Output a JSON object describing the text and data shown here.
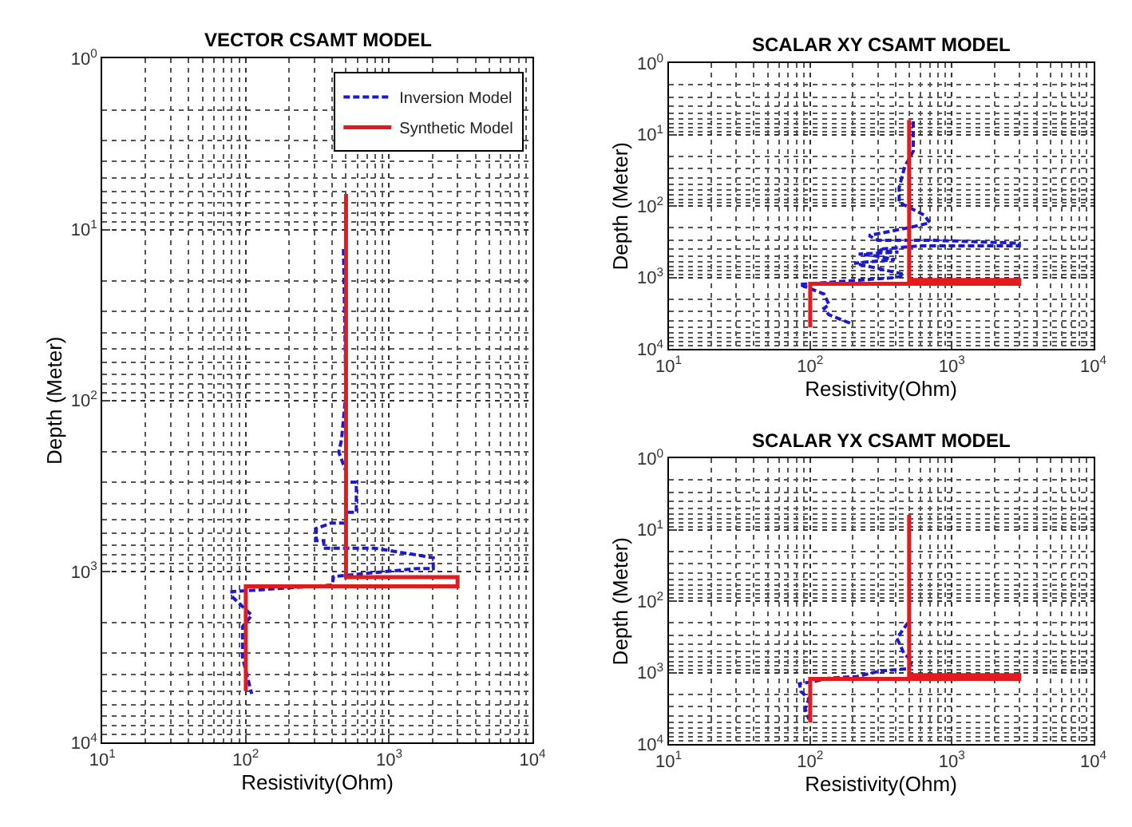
{
  "chart_data": [
    {
      "type": "line",
      "title": "VECTOR CSAMT MODEL",
      "xlabel": "Resistivity(Ohm)",
      "ylabel": "Depth (Meter)",
      "log": "xy",
      "grid": true,
      "legend": "top right",
      "xlim": [
        10,
        10000
      ],
      "xticks": [
        {
          "value": 10,
          "label": "10$^{1}$"
        },
        {
          "value": 100,
          "label": "10$^{2}$"
        },
        {
          "value": 1000,
          "label": "10$^{3}$"
        },
        {
          "value": 10000,
          "label": "10$^{4}$"
        }
      ],
      "ylim": [
        10000,
        1
      ],
      "yticks": [
        {
          "value": 1,
          "label": "10$^{0}$"
        },
        {
          "value": 10,
          "label": "10$^{1}$"
        },
        {
          "value": 100,
          "label": "10$^{2}$"
        },
        {
          "value": 1000,
          "label": "10$^{3}$"
        },
        {
          "value": 10000,
          "label": "10$^{4}$"
        }
      ],
      "series": [
        {
          "name": "Inversion Model",
          "color": "#1a1acc",
          "line_style": "dashed",
          "x": [
            480,
            500,
            465,
            445,
            500,
            500,
            590,
            590,
            500,
            500,
            395,
            310,
            310,
            350,
            350,
            790,
            2030,
            2030,
            1580,
            410,
            400,
            80,
            80,
            110,
            95,
            95,
            110
          ],
          "values": [
            13,
            90,
            170,
            200,
            260,
            300,
            300,
            450,
            450,
            520,
            520,
            560,
            660,
            660,
            730,
            730,
            830,
            960,
            960,
            1070,
            1200,
            1310,
            1400,
            1800,
            2100,
            3200,
            5200
          ]
        },
        {
          "name": "Synthetic Model",
          "color": "#e41a1c",
          "line_style": "solid",
          "x": [
            500,
            500,
            3000,
            3000,
            100,
            100
          ],
          "values": [
            6.2,
            1080,
            1080,
            1220,
            1220,
            5000
          ]
        }
      ]
    },
    {
      "type": "line",
      "title": "SCALAR XY CSAMT MODEL",
      "xlabel": "Resistivity(Ohm)",
      "ylabel": "Depth (Meter)",
      "log": "xy",
      "grid": true,
      "xlim": [
        10,
        10000
      ],
      "xticks": [
        {
          "value": 10,
          "label": "10$^{1}$"
        },
        {
          "value": 100,
          "label": "10$^{2}$"
        },
        {
          "value": 1000,
          "label": "10$^{3}$"
        },
        {
          "value": 10000,
          "label": "10$^{4}$"
        }
      ],
      "ylim": [
        10000,
        1
      ],
      "yticks": [
        {
          "value": 1,
          "label": "10$^{0}$"
        },
        {
          "value": 10,
          "label": "10$^{1}$"
        },
        {
          "value": 100,
          "label": "10$^{2}$"
        },
        {
          "value": 1000,
          "label": "10$^{3}$"
        },
        {
          "value": 10000,
          "label": "10$^{4}$"
        }
      ],
      "series": [
        {
          "color": "#1a1acc",
          "line_style": "dashed",
          "x": [
            535,
            535,
            465,
            425,
            425,
            505,
            640,
            700,
            500,
            260,
            300,
            700,
            3000,
            3000,
            600,
            310,
            300,
            420,
            220,
            285,
            395,
            205,
            460,
            400,
            84,
            125,
            136,
            125,
            135,
            200
          ],
          "values": [
            6.5,
            17,
            28,
            55,
            89,
            105,
            134,
            171,
            200,
            258,
            300,
            300,
            330,
            360,
            360,
            400,
            420,
            440,
            470,
            495,
            560,
            630,
            900,
            1000,
            1250,
            1700,
            2400,
            2700,
            3300,
            4500
          ]
        },
        {
          "color": "#e41a1c",
          "line_style": "solid",
          "x": [
            500,
            500,
            3000,
            3000,
            100,
            100
          ],
          "values": [
            6.2,
            1080,
            1080,
            1220,
            1220,
            5000
          ]
        }
      ]
    },
    {
      "type": "line",
      "title": "SCALAR YX CSAMT MODEL",
      "xlabel": "Resistivity(Ohm)",
      "ylabel": "Depth (Meter)",
      "log": "xy",
      "grid": true,
      "xlim": [
        10,
        10000
      ],
      "xticks": [
        {
          "value": 10,
          "label": "10$^{1}$"
        },
        {
          "value": 100,
          "label": "10$^{2}$"
        },
        {
          "value": 1000,
          "label": "10$^{3}$"
        },
        {
          "value": 10000,
          "label": "10$^{4}$"
        }
      ],
      "ylim": [
        10000,
        1
      ],
      "yticks": [
        {
          "value": 1,
          "label": "10$^{0}$"
        },
        {
          "value": 10,
          "label": "10$^{1}$"
        },
        {
          "value": 100,
          "label": "10$^{2}$"
        },
        {
          "value": 1000,
          "label": "10$^{3}$"
        },
        {
          "value": 10000,
          "label": "10$^{4}$"
        }
      ],
      "series": [
        {
          "color": "#1a1acc",
          "line_style": "dashed",
          "x": [
            490,
            410,
            460,
            525,
            490,
            310,
            215,
            135,
            110,
            84,
            86,
            98,
            92,
            98
          ],
          "values": [
            200,
            330,
            540,
            690,
            880,
            950,
            1130,
            1200,
            1310,
            1430,
            1830,
            2330,
            3200,
            4500
          ]
        },
        {
          "color": "#e41a1c",
          "line_style": "solid",
          "x": [
            500,
            500,
            3000,
            3000,
            100,
            100
          ],
          "values": [
            6.2,
            1080,
            1080,
            1220,
            1220,
            5000
          ]
        }
      ]
    }
  ]
}
